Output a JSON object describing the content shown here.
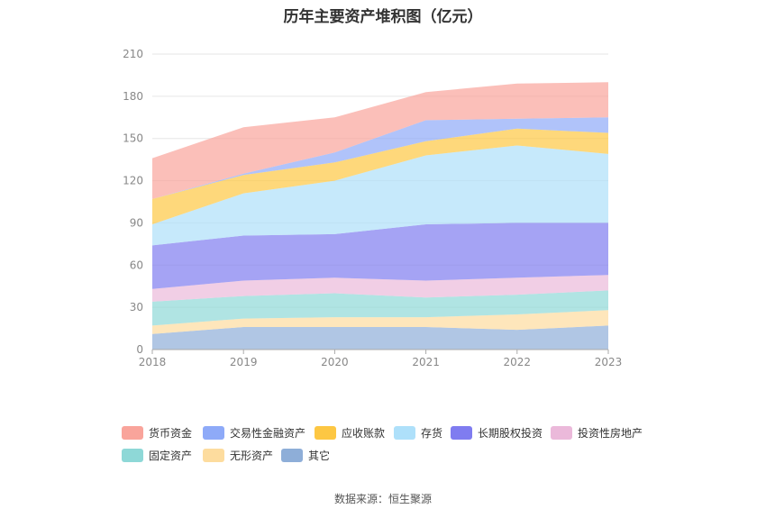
{
  "title": "历年主要资产堆积图（亿元）",
  "source": "数据来源：恒生聚源",
  "chart_data": {
    "type": "area",
    "stacked": true,
    "x": [
      "2018",
      "2019",
      "2020",
      "2021",
      "2022",
      "2023"
    ],
    "ylim": [
      0,
      210
    ],
    "yticks": [
      0,
      30,
      60,
      90,
      120,
      150,
      180,
      210
    ],
    "grid": true,
    "legend_position": "bottom",
    "series": [
      {
        "name": "其它",
        "color": "#8eaed8",
        "values": [
          11,
          16,
          16,
          16,
          14,
          17
        ]
      },
      {
        "name": "无形资产",
        "color": "#fddc9e",
        "values": [
          6,
          6,
          7,
          7,
          11,
          11
        ]
      },
      {
        "name": "固定资产",
        "color": "#8ed8d7",
        "values": [
          17,
          16,
          17,
          14,
          14,
          14
        ]
      },
      {
        "name": "投资性房地产",
        "color": "#ebb9da",
        "values": [
          9,
          11,
          11,
          12,
          12,
          11
        ]
      },
      {
        "name": "长期股权投资",
        "color": "#7f7cf0",
        "values": [
          31,
          32,
          31,
          40,
          39,
          37
        ]
      },
      {
        "name": "存货",
        "color": "#aee0fa",
        "values": [
          15,
          30,
          38,
          49,
          55,
          49
        ]
      },
      {
        "name": "应收账款",
        "color": "#fdc743",
        "values": [
          18,
          13,
          13,
          10,
          12,
          15
        ]
      },
      {
        "name": "交易性金融资产",
        "color": "#8eaaf8",
        "values": [
          0,
          1,
          7,
          15,
          7,
          11
        ]
      },
      {
        "name": "货币资金",
        "color": "#f9a49b",
        "values": [
          29,
          33,
          25,
          20,
          25,
          25
        ]
      }
    ]
  },
  "legend": [
    {
      "label": "货币资金",
      "color": "#f9a49b"
    },
    {
      "label": "交易性金融资产",
      "color": "#8eaaf8"
    },
    {
      "label": "应收账款",
      "color": "#fdc743"
    },
    {
      "label": "存货",
      "color": "#aee0fa"
    },
    {
      "label": "长期股权投资",
      "color": "#7f7cf0"
    },
    {
      "label": "投资性房地产",
      "color": "#ebb9da"
    },
    {
      "label": "固定资产",
      "color": "#8ed8d7"
    },
    {
      "label": "无形资产",
      "color": "#fddc9e"
    },
    {
      "label": "其它",
      "color": "#8eaed8"
    }
  ]
}
